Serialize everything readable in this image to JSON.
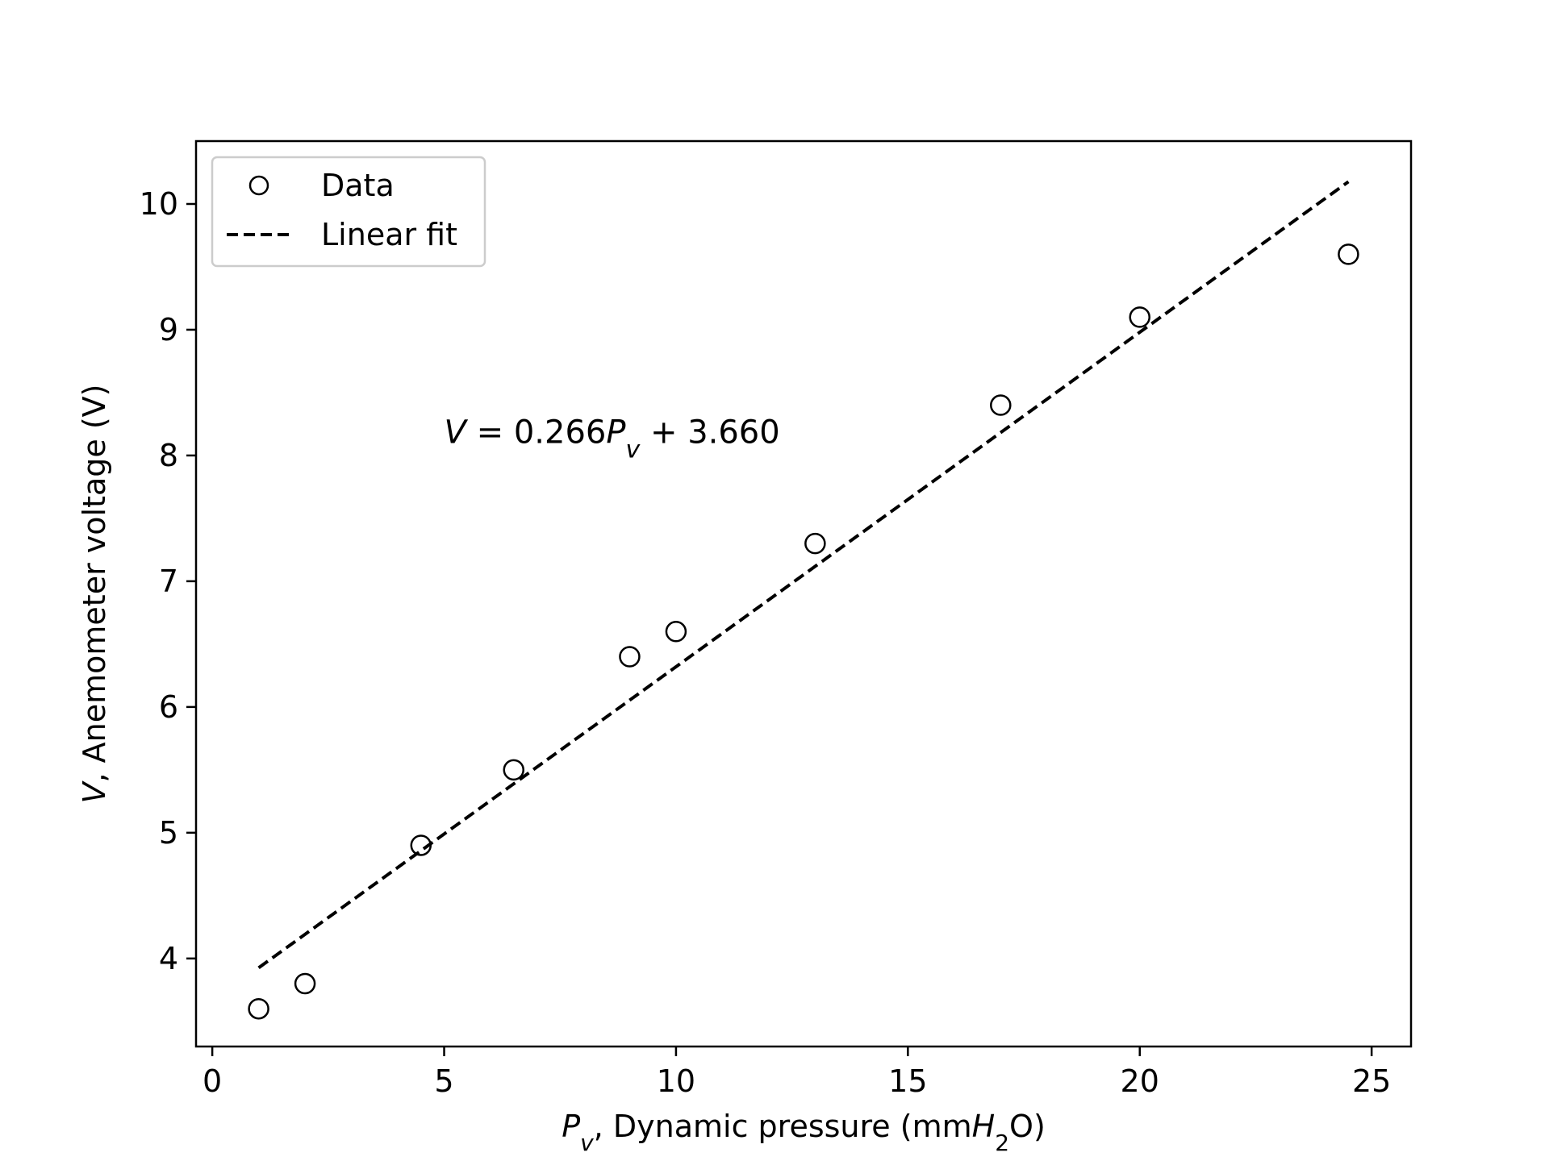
{
  "chart_data": {
    "type": "scatter",
    "title": "",
    "xlabel": {
      "var": "P",
      "sub": "v",
      "text": ", Dynamic pressure (mm",
      "unit_var": "H",
      "unit_sub": "2",
      "unit_end": "O)"
    },
    "ylabel": {
      "var": "V",
      "text": ", Anemometer voltage (V)"
    },
    "xlim": [
      -0.35,
      25.85
    ],
    "ylim": [
      3.3,
      10.5
    ],
    "xticks": [
      0,
      5,
      10,
      15,
      20,
      25
    ],
    "yticks": [
      4,
      5,
      6,
      7,
      8,
      9,
      10
    ],
    "grid": false,
    "legend_position": "top-left",
    "series": [
      {
        "name": "Data",
        "kind": "scatter",
        "marker": "open-circle",
        "color": "#000000",
        "x": [
          1,
          2,
          4.5,
          6.5,
          9,
          10,
          13,
          17,
          20,
          24.5
        ],
        "y": [
          3.6,
          3.8,
          4.9,
          5.5,
          6.4,
          6.6,
          7.3,
          8.4,
          9.1,
          9.6
        ]
      },
      {
        "name": "Linear fit",
        "kind": "line",
        "style": "dashed",
        "color": "#000000",
        "slope": 0.266,
        "intercept": 3.66,
        "x_range": [
          1,
          24.5
        ]
      }
    ],
    "annotation": {
      "lhs": "V",
      "eq": " = 0.266",
      "var": "P",
      "sub": "v",
      "rest": " + 3.660",
      "at": [
        5,
        8.1
      ]
    }
  }
}
